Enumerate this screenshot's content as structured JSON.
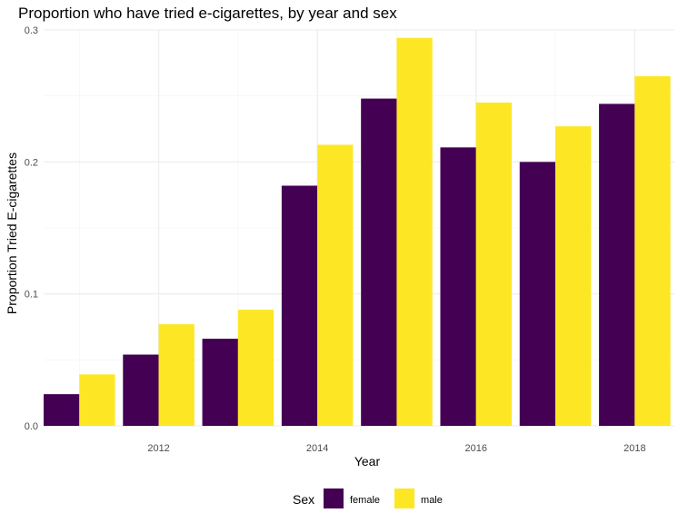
{
  "chart_data": {
    "type": "bar",
    "title": "Proportion who have tried e-cigarettes, by year and sex",
    "xlabel": "Year",
    "ylabel": "Proportion Tried E-cigarettes",
    "x": [
      2011,
      2012,
      2013,
      2014,
      2015,
      2016,
      2017,
      2018
    ],
    "x_ticks": [
      2012,
      2014,
      2016,
      2018
    ],
    "x_tick_labels": [
      "2012",
      "2014",
      "2016",
      "2018"
    ],
    "xlim": [
      2010.55,
      2018.5
    ],
    "ylim": [
      0,
      0.3
    ],
    "y_ticks": [
      0.0,
      0.1,
      0.2,
      0.3
    ],
    "y_tick_labels": [
      "0.0",
      "0.1",
      "0.2",
      "0.3"
    ],
    "series": [
      {
        "name": "female",
        "color": "#440154",
        "values": [
          0.024,
          0.054,
          0.066,
          0.182,
          0.248,
          0.211,
          0.2,
          0.244
        ]
      },
      {
        "name": "male",
        "color": "#fde725",
        "values": [
          0.039,
          0.077,
          0.088,
          0.213,
          0.294,
          0.245,
          0.227,
          0.265
        ]
      }
    ],
    "grid": true,
    "legend": {
      "title": "Sex",
      "position": "bottom"
    }
  }
}
